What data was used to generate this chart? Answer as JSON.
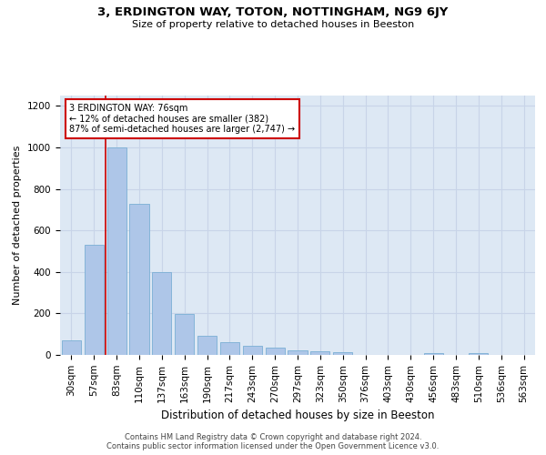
{
  "title": "3, ERDINGTON WAY, TOTON, NOTTINGHAM, NG9 6JY",
  "subtitle": "Size of property relative to detached houses in Beeston",
  "xlabel": "Distribution of detached houses by size in Beeston",
  "ylabel": "Number of detached properties",
  "categories": [
    "30sqm",
    "57sqm",
    "83sqm",
    "110sqm",
    "137sqm",
    "163sqm",
    "190sqm",
    "217sqm",
    "243sqm",
    "270sqm",
    "297sqm",
    "323sqm",
    "350sqm",
    "376sqm",
    "403sqm",
    "430sqm",
    "456sqm",
    "483sqm",
    "510sqm",
    "536sqm",
    "563sqm"
  ],
  "values": [
    70,
    530,
    1000,
    730,
    400,
    197,
    90,
    60,
    45,
    33,
    20,
    18,
    15,
    0,
    0,
    0,
    10,
    0,
    8,
    0,
    0
  ],
  "bar_color": "#aec6e8",
  "bar_edge_color": "#7aafd4",
  "grid_color": "#c8d4e8",
  "background_color": "#dde8f4",
  "vline_color": "#cc0000",
  "vline_x_index": 1.5,
  "annotation_text": "3 ERDINGTON WAY: 76sqm\n← 12% of detached houses are smaller (382)\n87% of semi-detached houses are larger (2,747) →",
  "annotation_box_facecolor": "#ffffff",
  "annotation_box_edgecolor": "#cc0000",
  "ylim": [
    0,
    1250
  ],
  "yticks": [
    0,
    200,
    400,
    600,
    800,
    1000,
    1200
  ],
  "title_fontsize": 9.5,
  "subtitle_fontsize": 8,
  "tick_fontsize": 7.5,
  "ylabel_fontsize": 8,
  "xlabel_fontsize": 8.5,
  "footer_line1": "Contains HM Land Registry data © Crown copyright and database right 2024.",
  "footer_line2": "Contains public sector information licensed under the Open Government Licence v3.0.",
  "footer_fontsize": 6
}
